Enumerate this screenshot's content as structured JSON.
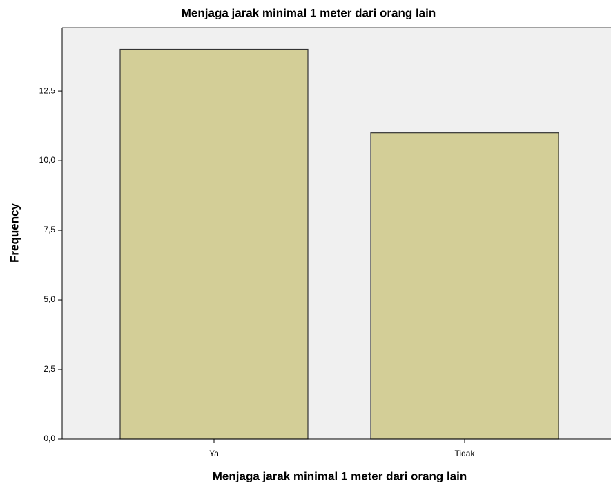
{
  "chart_data": {
    "type": "bar",
    "title": "Menjaga jarak minimal 1 meter dari orang lain",
    "x_label": "Menjaga jarak minimal 1 meter dari orang lain",
    "y_label": "Frequency",
    "categories": [
      "Ya",
      "Tidak"
    ],
    "values": [
      14,
      11
    ],
    "color": "#d3ce97",
    "ylim": [
      0,
      14.78
    ],
    "yticks": [
      {
        "value": 0,
        "label": "0,0"
      },
      {
        "value": 2.5,
        "label": "2,5"
      },
      {
        "value": 5,
        "label": "5,0"
      },
      {
        "value": 7.5,
        "label": "7,5"
      },
      {
        "value": 10,
        "label": "10,0"
      },
      {
        "value": 12.5,
        "label": "12,5"
      }
    ],
    "grid": false
  }
}
